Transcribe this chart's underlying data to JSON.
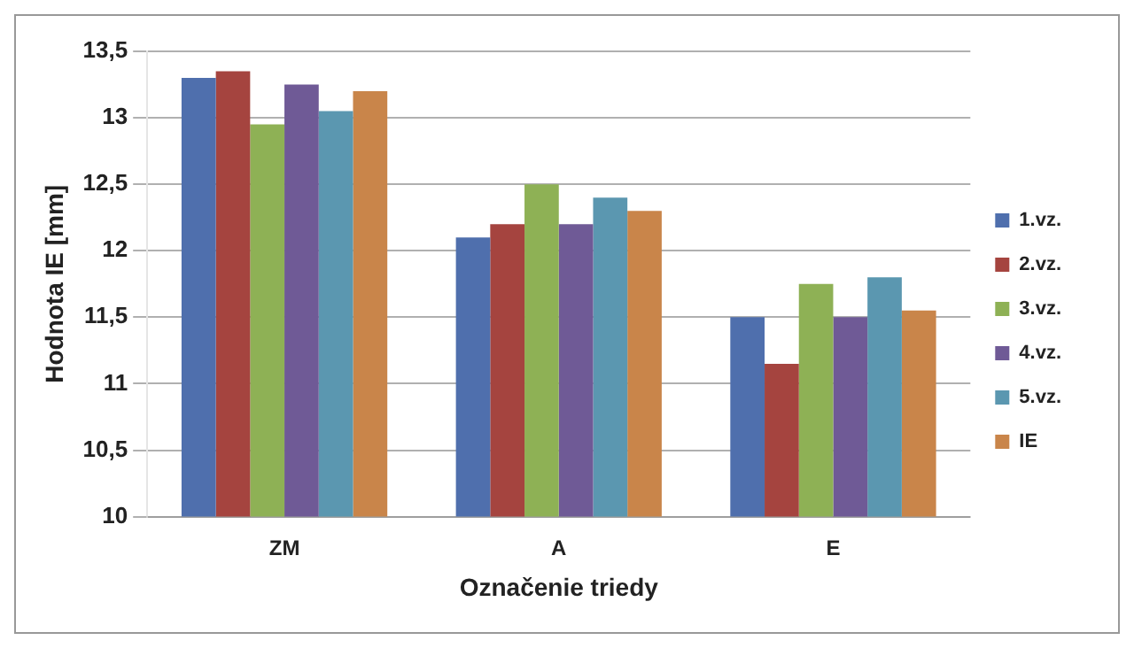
{
  "chart_data": {
    "type": "bar",
    "xlabel": "Označenie triedy",
    "ylabel": "Hodnota IE [mm]",
    "categories": [
      "ZM",
      "A",
      "E"
    ],
    "series": [
      {
        "name": "1.vz.",
        "color": "#4f6fad",
        "values": [
          13.3,
          12.1,
          11.5
        ]
      },
      {
        "name": "2.vz.",
        "color": "#a5443f",
        "values": [
          13.35,
          12.2,
          11.15
        ]
      },
      {
        "name": "3.vz.",
        "color": "#8eb155",
        "values": [
          12.95,
          12.5,
          11.75
        ]
      },
      {
        "name": "4.vz.",
        "color": "#6f5a96",
        "values": [
          13.25,
          12.2,
          11.5
        ]
      },
      {
        "name": "5.vz.",
        "color": "#5b97b0",
        "values": [
          13.05,
          12.4,
          11.8
        ]
      },
      {
        "name": "IE",
        "color": "#c9854a",
        "values": [
          13.2,
          12.3,
          11.55
        ]
      }
    ],
    "ylim": [
      10,
      13.5
    ],
    "yticks": [
      10,
      {
        "value": 10.5,
        "label": "10,5"
      },
      11,
      {
        "value": 11.5,
        "label": "11,5"
      },
      12,
      {
        "value": 12.5,
        "label": "12,5"
      },
      13,
      {
        "value": 13.5,
        "label": "13,5"
      }
    ],
    "grid": "y",
    "legend": "right"
  }
}
